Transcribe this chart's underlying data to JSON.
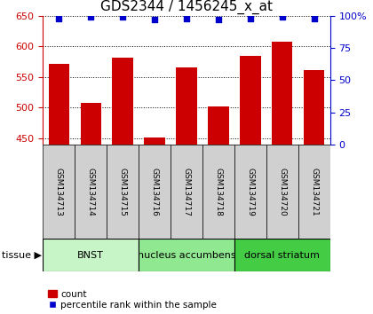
{
  "title": "GDS2344 / 1456245_x_at",
  "samples": [
    "GSM134713",
    "GSM134714",
    "GSM134715",
    "GSM134716",
    "GSM134717",
    "GSM134718",
    "GSM134719",
    "GSM134720",
    "GSM134721"
  ],
  "counts": [
    572,
    508,
    581,
    451,
    565,
    502,
    585,
    608,
    562
  ],
  "percentiles": [
    98,
    99,
    99,
    97,
    98,
    97,
    98,
    99,
    98
  ],
  "bar_color": "#cc0000",
  "dot_color": "#0000cc",
  "ylim_left": [
    440,
    650
  ],
  "ylim_right": [
    0,
    100
  ],
  "yticks_left": [
    450,
    500,
    550,
    600,
    650
  ],
  "yticks_right": [
    0,
    25,
    50,
    75,
    100
  ],
  "tissue_groups": [
    {
      "label": "BNST",
      "start": 0,
      "end": 3,
      "color": "#c8f5c8"
    },
    {
      "label": "nucleus accumbens",
      "start": 3,
      "end": 6,
      "color": "#90e890"
    },
    {
      "label": "dorsal striatum",
      "start": 6,
      "end": 9,
      "color": "#44cc44"
    }
  ],
  "legend_count_label": "count",
  "legend_percentile_label": "percentile rank within the sample",
  "tissue_label": "tissue",
  "background_plot": "#ffffff",
  "background_xtick": "#d0d0d0",
  "grid_color": "#000000",
  "title_fontsize": 11,
  "tick_fontsize": 8,
  "axis_color_left": "#cc0000",
  "axis_color_right": "#0000cc"
}
